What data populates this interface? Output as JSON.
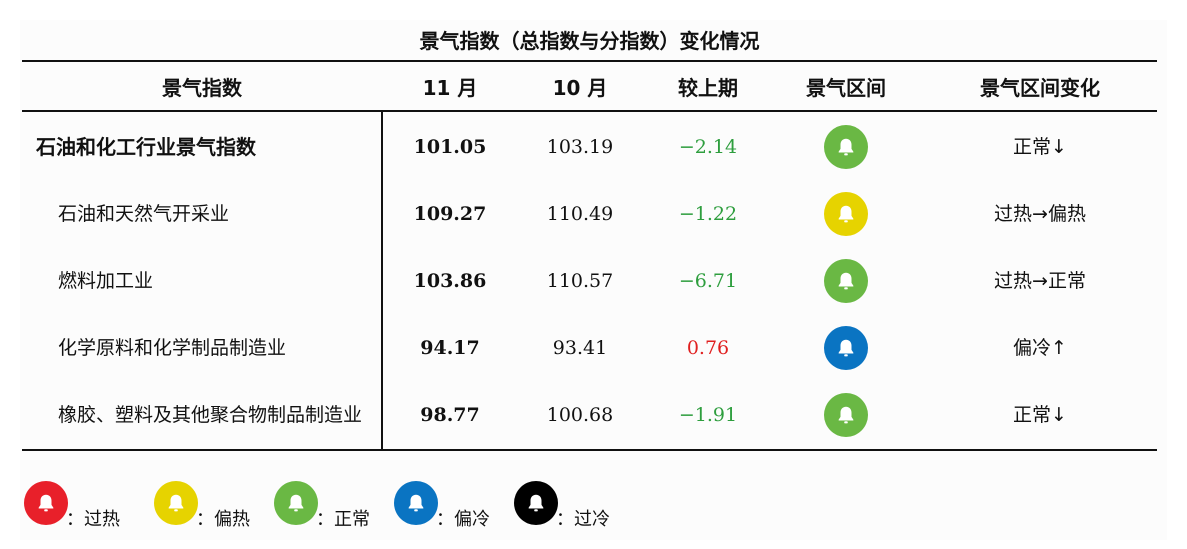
{
  "title": "景气指数（总指数与分指数）变化情况",
  "headers": [
    "景气指数",
    "11 月",
    "10 月",
    "较上期",
    "景气区间",
    "景气区间变化"
  ],
  "rows": [
    {
      "name": "石油和化工行业景气指数",
      "nov": "101.05",
      "oct": "103.19",
      "change": "−2.14",
      "zone_color": "#6ab844",
      "zone_change": "正常↓"
    },
    {
      "name": "石油和天然气开采业",
      "nov": "109.27",
      "oct": "110.49",
      "change": "−1.22",
      "zone_color": "#e6d300",
      "zone_change": "过热→偏热"
    },
    {
      "name": "燃料加工业",
      "nov": "103.86",
      "oct": "110.57",
      "change": "−6.71",
      "zone_color": "#6ab844",
      "zone_change": "过热→正常"
    },
    {
      "name": "化学原料和化学制品制造业",
      "nov": "94.17",
      "oct": "93.41",
      "change": "0.76",
      "zone_color": "#0a74c2",
      "zone_change": "偏冷↑"
    },
    {
      "name": "橡胶、塑料及其他聚合物制品制造业",
      "nov": "98.77",
      "oct": "100.68",
      "change": "−1.91",
      "zone_color": "#6ab844",
      "zone_change": "正常↓"
    }
  ],
  "legend": [
    {
      "label": "：过热",
      "color": "#e8202a",
      "icon": "bell-icon"
    },
    {
      "label": "：偏热",
      "color": "#e6d300",
      "icon": "bell-icon"
    },
    {
      "label": "：正常",
      "color": "#6ab844",
      "icon": "bell-icon"
    },
    {
      "label": "：偏冷",
      "color": "#0a74c2",
      "icon": "bell-icon"
    },
    {
      "label": "：过冷",
      "color": "#000000",
      "icon": "bell-icon"
    }
  ]
}
